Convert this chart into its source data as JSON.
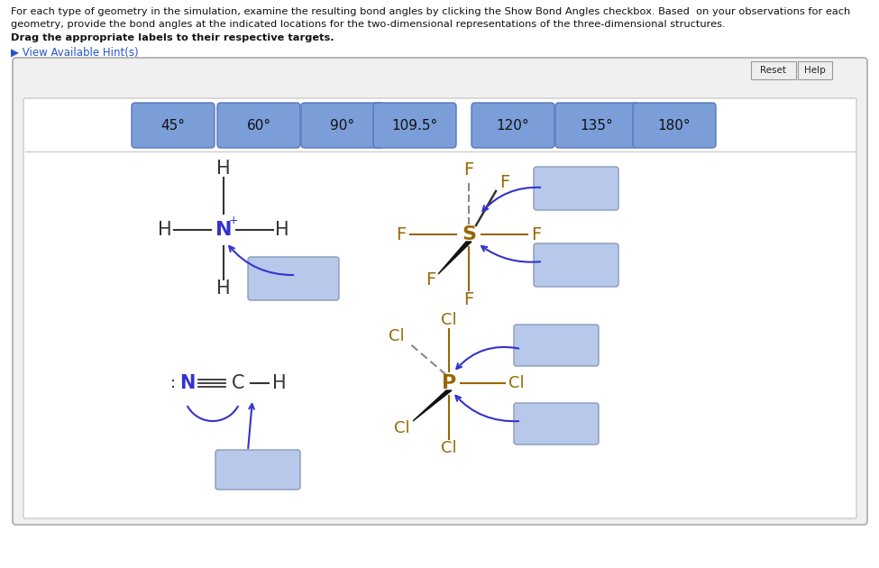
{
  "bg_color": "#ffffff",
  "header_text_1": "For each type of geometry in the simulation, examine the resulting bond angles by clicking the Show Bond Angles checkbox. Based  on your observations for each",
  "header_text_2": "geometry, provide the bond angles at the indicated locations for the two-dimensional representations of the three-dimensional structures.",
  "bold_text": "Drag the appropriate labels to their respective targets.",
  "hint_text": "▶ View Available Hint(s)",
  "button_labels": [
    "45°",
    "60°",
    "90°",
    "109.5°",
    "120°",
    "135°",
    "180°"
  ],
  "button_color": "#7b9ed9",
  "box_color": "#b8c8ea",
  "box_border": "#8899bb",
  "mol_color": "#333333",
  "N_color": "#3333cc",
  "SF_color": "#996600",
  "arrow_color": "#3333cc",
  "reset_label": "Reset",
  "help_label": "Help",
  "outer_bg": "#f0f0f0",
  "inner_bg": "#ffffff",
  "panel_border": "#aaaaaa",
  "inner_border": "#cccccc"
}
